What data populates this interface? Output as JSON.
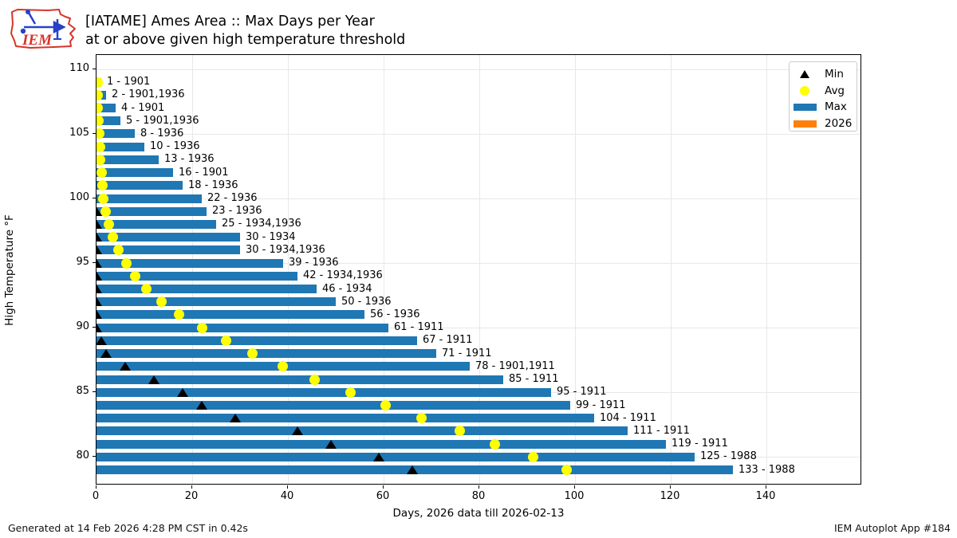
{
  "header": {
    "title_line1": "[IATAME] Ames Area :: Max Days per Year",
    "title_line2": "at or above given high temperature threshold",
    "logo_text": "IEM"
  },
  "legend": {
    "items": [
      {
        "label": "Min",
        "marker": "triangle",
        "color": "#000000"
      },
      {
        "label": "Avg",
        "marker": "circle",
        "color": "#ffff00"
      },
      {
        "label": "Max",
        "marker": "rect",
        "color": "#1f77b4"
      },
      {
        "label": "2026",
        "marker": "rect",
        "color": "#ff7f0e"
      }
    ]
  },
  "footer": {
    "generated": "Generated at 14 Feb 2026 4:28 PM CST in 0.42s",
    "app": "IEM Autoplot App #184"
  },
  "chart_data": {
    "type": "bar",
    "orientation": "horizontal",
    "title": "[IATAME] Ames Area :: Max Days per Year at or above given high temperature threshold",
    "xlabel": "Days, 2026 data till 2026-02-13",
    "ylabel": "High Temperature °F",
    "xlim": [
      0,
      160
    ],
    "ylim": [
      77.8,
      111.1
    ],
    "xticks": [
      0,
      20,
      40,
      60,
      80,
      100,
      120,
      140
    ],
    "yticks": [
      110,
      105,
      100,
      95,
      90,
      85,
      80
    ],
    "grid": true,
    "legend_position": "upper right",
    "colors": {
      "max": "#1f77b4",
      "avg": "#ffff00",
      "min": "#000000",
      "year2026": "#ff7f0e"
    },
    "rows": [
      {
        "threshold": 109,
        "max": 1,
        "years": "1901",
        "label": "1 - 1901",
        "min": null,
        "avg": 0.2
      },
      {
        "threshold": 108,
        "max": 2,
        "years": "1901,1936",
        "label": "2 - 1901,1936",
        "min": null,
        "avg": 0.3
      },
      {
        "threshold": 107,
        "max": 4,
        "years": "1901",
        "label": "4 - 1901",
        "min": null,
        "avg": 0.3
      },
      {
        "threshold": 106,
        "max": 5,
        "years": "1901,1936",
        "label": "5 - 1901,1936",
        "min": null,
        "avg": 0.4
      },
      {
        "threshold": 105,
        "max": 8,
        "years": "1936",
        "label": "8 - 1936",
        "min": null,
        "avg": 0.5
      },
      {
        "threshold": 104,
        "max": 10,
        "years": "1936",
        "label": "10 - 1936",
        "min": null,
        "avg": 0.7
      },
      {
        "threshold": 103,
        "max": 13,
        "years": "1936",
        "label": "13 - 1936",
        "min": null,
        "avg": 0.8
      },
      {
        "threshold": 102,
        "max": 16,
        "years": "1901",
        "label": "16 - 1901",
        "min": null,
        "avg": 1.0
      },
      {
        "threshold": 101,
        "max": 18,
        "years": "1936",
        "label": "18 - 1936",
        "min": null,
        "avg": 1.2
      },
      {
        "threshold": 100,
        "max": 22,
        "years": "1936",
        "label": "22 - 1936",
        "min": null,
        "avg": 1.4
      },
      {
        "threshold": 99,
        "max": 23,
        "years": "1936",
        "label": "23 - 1936",
        "min": 0,
        "avg": 1.9
      },
      {
        "threshold": 98,
        "max": 25,
        "years": "1934,1936",
        "label": "25 - 1934,1936",
        "min": 0,
        "avg": 2.6
      },
      {
        "threshold": 97,
        "max": 30,
        "years": "1934",
        "label": "30 - 1934",
        "min": 0,
        "avg": 3.4
      },
      {
        "threshold": 96,
        "max": 30,
        "years": "1934,1936",
        "label": "30 - 1934,1936",
        "min": 0,
        "avg": 4.5
      },
      {
        "threshold": 95,
        "max": 39,
        "years": "1936",
        "label": "39 - 1936",
        "min": 0,
        "avg": 6.3
      },
      {
        "threshold": 94,
        "max": 42,
        "years": "1934,1936",
        "label": "42 - 1934,1936",
        "min": 0,
        "avg": 8.0
      },
      {
        "threshold": 93,
        "max": 46,
        "years": "1934",
        "label": "46 - 1934",
        "min": 0,
        "avg": 10.4
      },
      {
        "threshold": 92,
        "max": 50,
        "years": "1936",
        "label": "50 - 1936",
        "min": 0,
        "avg": 13.6
      },
      {
        "threshold": 91,
        "max": 56,
        "years": "1936",
        "label": "56 - 1936",
        "min": 0,
        "avg": 17.2
      },
      {
        "threshold": 90,
        "max": 61,
        "years": "1911",
        "label": "61 - 1911",
        "min": 0,
        "avg": 22.1
      },
      {
        "threshold": 89,
        "max": 67,
        "years": "1911",
        "label": "67 - 1911",
        "min": 1,
        "avg": 27.0
      },
      {
        "threshold": 88,
        "max": 71,
        "years": "1911",
        "label": "71 - 1911",
        "min": 2,
        "avg": 32.6
      },
      {
        "threshold": 87,
        "max": 78,
        "years": "1901,1911",
        "label": "78 - 1901,1911",
        "min": 6,
        "avg": 38.9
      },
      {
        "threshold": 86,
        "max": 85,
        "years": "1911",
        "label": "85 - 1911",
        "min": 12,
        "avg": 45.6
      },
      {
        "threshold": 85,
        "max": 95,
        "years": "1911",
        "label": "95 - 1911",
        "min": 18,
        "avg": 53.1
      },
      {
        "threshold": 84,
        "max": 99,
        "years": "1911",
        "label": "99 - 1911",
        "min": 22,
        "avg": 60.4
      },
      {
        "threshold": 83,
        "max": 104,
        "years": "1911",
        "label": "104 - 1911",
        "min": 29,
        "avg": 67.9
      },
      {
        "threshold": 82,
        "max": 111,
        "years": "1911",
        "label": "111 - 1911",
        "min": 42,
        "avg": 75.9
      },
      {
        "threshold": 81,
        "max": 119,
        "years": "1911",
        "label": "119 - 1911",
        "min": 49,
        "avg": 83.2
      },
      {
        "threshold": 80,
        "max": 125,
        "years": "1988",
        "label": "125 - 1988",
        "min": 59,
        "avg": 91.2
      },
      {
        "threshold": 79,
        "max": 133,
        "years": "1988",
        "label": "133 - 1988",
        "min": 66,
        "avg": 98.3
      }
    ]
  }
}
